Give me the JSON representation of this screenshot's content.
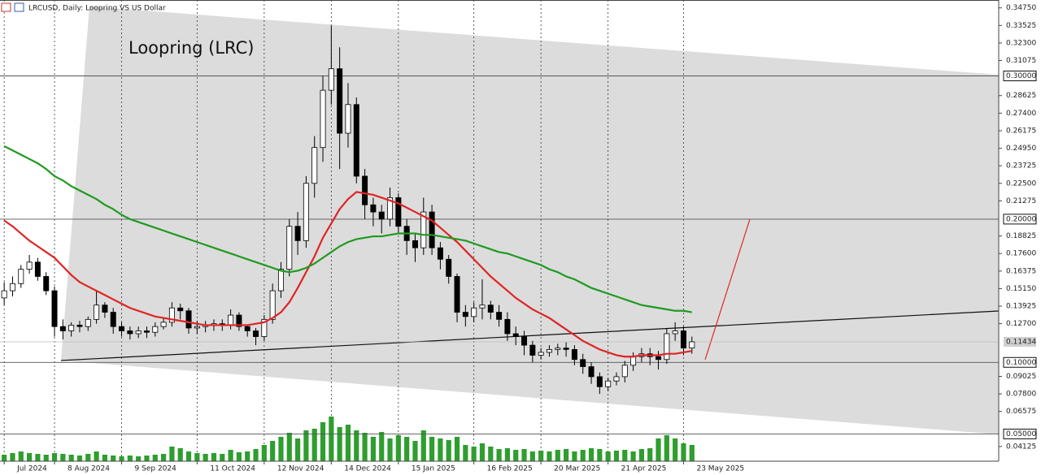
{
  "chart_data": {
    "type": "candlestick",
    "title": "LRCUSD, Daily:  Loopring VS US Dollar",
    "annotation": "Loopring (LRC)",
    "categories": [
      "Jul 2024",
      null,
      null,
      null,
      null,
      null,
      "8 Aug 2024",
      null,
      null,
      null,
      null,
      null,
      null,
      null,
      "9 Sep 2024",
      null,
      null,
      null,
      null,
      null,
      null,
      null,
      null,
      "11 Oct 2024",
      null,
      null,
      null,
      null,
      null,
      null,
      null,
      "12 Nov 2024",
      null,
      null,
      null,
      null,
      null,
      null,
      null,
      "14 Dec 2024",
      null,
      null,
      null,
      null,
      null,
      null,
      null,
      "15 Jan 2025",
      null,
      null,
      null,
      null,
      null,
      null,
      null,
      null,
      "16 Feb 2025",
      null,
      null,
      null,
      null,
      null,
      null,
      null,
      "20 Mar 2025",
      null,
      null,
      null,
      null,
      null,
      null,
      null,
      "21 Apr 2025",
      null,
      null,
      null,
      null,
      null,
      null,
      null,
      null,
      "23 May 2025",
      null
    ],
    "open": [
      0.145,
      0.15,
      0.155,
      0.165,
      0.17,
      0.16,
      0.15,
      0.125,
      0.122,
      0.126,
      0.125,
      0.13,
      0.14,
      0.135,
      0.125,
      0.122,
      0.12,
      0.122,
      0.121,
      0.125,
      0.128,
      0.138,
      0.136,
      0.124,
      0.125,
      0.126,
      0.127,
      0.126,
      0.133,
      0.125,
      0.122,
      0.118,
      0.13,
      0.15,
      0.165,
      0.195,
      0.185,
      0.225,
      0.25,
      0.29,
      0.305,
      0.26,
      0.28,
      0.23,
      0.21,
      0.205,
      0.2,
      0.215,
      0.195,
      0.185,
      0.18,
      0.205,
      0.18,
      0.172,
      0.16,
      0.135,
      0.132,
      0.138,
      0.14,
      0.135,
      0.13,
      0.12,
      0.118,
      0.112,
      0.105,
      0.107,
      0.109,
      0.11,
      0.109,
      0.102,
      0.097,
      0.09,
      0.083,
      0.087,
      0.09,
      0.098,
      0.104,
      0.106,
      0.104,
      0.102,
      0.12,
      0.122,
      0.11
    ],
    "high": [
      0.156,
      0.16,
      0.168,
      0.175,
      0.173,
      0.163,
      0.153,
      0.13,
      0.128,
      0.129,
      0.132,
      0.15,
      0.142,
      0.138,
      0.128,
      0.125,
      0.125,
      0.125,
      0.128,
      0.131,
      0.142,
      0.141,
      0.138,
      0.129,
      0.129,
      0.13,
      0.13,
      0.137,
      0.135,
      0.126,
      0.124,
      0.133,
      0.155,
      0.17,
      0.2,
      0.205,
      0.23,
      0.258,
      0.3,
      0.335,
      0.32,
      0.295,
      0.285,
      0.235,
      0.215,
      0.21,
      0.222,
      0.218,
      0.2,
      0.19,
      0.215,
      0.21,
      0.184,
      0.175,
      0.162,
      0.14,
      0.142,
      0.158,
      0.143,
      0.14,
      0.135,
      0.125,
      0.122,
      0.115,
      0.11,
      0.112,
      0.113,
      0.114,
      0.112,
      0.106,
      0.1,
      0.093,
      0.089,
      0.093,
      0.101,
      0.107,
      0.11,
      0.11,
      0.108,
      0.124,
      0.128,
      0.125,
      0.118
    ],
    "low": [
      0.14,
      0.146,
      0.152,
      0.162,
      0.157,
      0.147,
      0.118,
      0.116,
      0.118,
      0.121,
      0.122,
      0.127,
      0.131,
      0.12,
      0.118,
      0.116,
      0.117,
      0.117,
      0.118,
      0.123,
      0.125,
      0.13,
      0.12,
      0.12,
      0.121,
      0.122,
      0.122,
      0.123,
      0.122,
      0.118,
      0.112,
      0.115,
      0.127,
      0.145,
      0.16,
      0.175,
      0.18,
      0.215,
      0.24,
      0.28,
      0.235,
      0.25,
      0.225,
      0.2,
      0.195,
      0.19,
      0.195,
      0.19,
      0.175,
      0.17,
      0.175,
      0.175,
      0.165,
      0.155,
      0.128,
      0.125,
      0.128,
      0.13,
      0.13,
      0.125,
      0.115,
      0.112,
      0.105,
      0.1,
      0.102,
      0.104,
      0.105,
      0.104,
      0.098,
      0.092,
      0.085,
      0.078,
      0.08,
      0.084,
      0.086,
      0.094,
      0.1,
      0.098,
      0.095,
      0.099,
      0.115,
      0.105,
      0.106
    ],
    "close": [
      0.15,
      0.155,
      0.165,
      0.17,
      0.16,
      0.15,
      0.125,
      0.122,
      0.126,
      0.125,
      0.13,
      0.14,
      0.135,
      0.125,
      0.122,
      0.12,
      0.122,
      0.121,
      0.125,
      0.128,
      0.138,
      0.136,
      0.124,
      0.125,
      0.126,
      0.127,
      0.126,
      0.133,
      0.125,
      0.122,
      0.118,
      0.13,
      0.15,
      0.165,
      0.195,
      0.185,
      0.225,
      0.25,
      0.29,
      0.305,
      0.26,
      0.28,
      0.23,
      0.21,
      0.205,
      0.2,
      0.215,
      0.195,
      0.185,
      0.18,
      0.205,
      0.18,
      0.172,
      0.16,
      0.135,
      0.132,
      0.138,
      0.14,
      0.135,
      0.13,
      0.12,
      0.118,
      0.112,
      0.105,
      0.107,
      0.109,
      0.11,
      0.109,
      0.102,
      0.097,
      0.09,
      0.083,
      0.087,
      0.09,
      0.098,
      0.104,
      0.106,
      0.104,
      0.102,
      0.12,
      0.122,
      0.11,
      0.11434
    ],
    "volume": [
      8,
      10,
      12,
      10,
      9,
      8,
      10,
      9,
      8,
      7,
      9,
      12,
      8,
      7,
      6,
      7,
      6,
      7,
      8,
      9,
      18,
      16,
      12,
      10,
      9,
      10,
      9,
      14,
      11,
      12,
      15,
      20,
      25,
      30,
      35,
      28,
      38,
      40,
      48,
      55,
      42,
      45,
      38,
      35,
      30,
      36,
      28,
      32,
      30,
      25,
      38,
      30,
      28,
      26,
      30,
      20,
      18,
      22,
      18,
      15,
      16,
      14,
      15,
      12,
      13,
      12,
      14,
      15,
      12,
      14,
      16,
      15,
      12,
      13,
      14,
      12,
      15,
      16,
      28,
      32,
      28,
      22,
      20
    ],
    "volume_color": "#2e9e2e",
    "series": [
      {
        "color": "#e02424",
        "values": [
          0.199,
          0.195,
          0.19,
          0.185,
          0.181,
          0.177,
          0.173,
          0.167,
          0.161,
          0.156,
          0.153,
          0.15,
          0.147,
          0.144,
          0.141,
          0.138,
          0.136,
          0.134,
          0.132,
          0.131,
          0.13,
          0.129,
          0.128,
          0.127,
          0.126,
          0.126,
          0.126,
          0.126,
          0.126,
          0.126,
          0.127,
          0.128,
          0.131,
          0.135,
          0.142,
          0.152,
          0.163,
          0.174,
          0.187,
          0.197,
          0.207,
          0.214,
          0.219,
          0.218,
          0.217,
          0.215,
          0.213,
          0.211,
          0.208,
          0.205,
          0.202,
          0.199,
          0.194,
          0.189,
          0.184,
          0.178,
          0.172,
          0.166,
          0.16,
          0.155,
          0.15,
          0.145,
          0.141,
          0.137,
          0.134,
          0.131,
          0.127,
          0.123,
          0.119,
          0.115,
          0.112,
          0.109,
          0.107,
          0.105,
          0.104,
          0.104,
          0.105,
          0.105,
          0.105,
          0.106,
          0.106,
          0.107,
          0.108
        ]
      },
      {
        "color": "#1f9a1f",
        "values": [
          0.251,
          0.248,
          0.245,
          0.242,
          0.239,
          0.235,
          0.23,
          0.227,
          0.223,
          0.22,
          0.217,
          0.214,
          0.21,
          0.207,
          0.203,
          0.2,
          0.198,
          0.196,
          0.194,
          0.192,
          0.19,
          0.188,
          0.186,
          0.184,
          0.182,
          0.18,
          0.178,
          0.176,
          0.174,
          0.172,
          0.17,
          0.168,
          0.166,
          0.164,
          0.163,
          0.164,
          0.166,
          0.169,
          0.173,
          0.177,
          0.181,
          0.184,
          0.186,
          0.187,
          0.188,
          0.188,
          0.189,
          0.19,
          0.19,
          0.19,
          0.189,
          0.189,
          0.188,
          0.187,
          0.186,
          0.185,
          0.183,
          0.181,
          0.179,
          0.177,
          0.176,
          0.174,
          0.172,
          0.17,
          0.168,
          0.165,
          0.163,
          0.16,
          0.158,
          0.155,
          0.152,
          0.15,
          0.148,
          0.146,
          0.144,
          0.142,
          0.14,
          0.139,
          0.138,
          0.137,
          0.136,
          0.136,
          0.135
        ]
      }
    ],
    "levels": [
      {
        "value": 0.3,
        "label": "0.30000"
      },
      {
        "value": 0.2,
        "label": "0.20000"
      },
      {
        "value": 0.1,
        "label": "0.10000"
      },
      {
        "value": 0.05,
        "label": "0.05000"
      }
    ],
    "current_price": 0.11434,
    "ylim": [
      0.031,
      0.353
    ],
    "yticks": [
      {
        "value": 0.3475,
        "label": "0.34750"
      },
      {
        "value": 0.33525,
        "label": "0.33525"
      },
      {
        "value": 0.323,
        "label": "0.32300"
      },
      {
        "value": 0.31075,
        "label": "0.31075"
      },
      {
        "value": 0.28625,
        "label": "0.28625"
      },
      {
        "value": 0.274,
        "label": "0.27400"
      },
      {
        "value": 0.26175,
        "label": "0.26175"
      },
      {
        "value": 0.2495,
        "label": "0.24950"
      },
      {
        "value": 0.23725,
        "label": "0.23725"
      },
      {
        "value": 0.225,
        "label": "0.22500"
      },
      {
        "value": 0.21275,
        "label": "0.21275"
      },
      {
        "value": 0.18825,
        "label": "0.18825"
      },
      {
        "value": 0.176,
        "label": "0.17600"
      },
      {
        "value": 0.16375,
        "label": "0.16375"
      },
      {
        "value": 0.1515,
        "label": "0.15150"
      },
      {
        "value": 0.13925,
        "label": "0.13925"
      },
      {
        "value": 0.127,
        "label": "0.12700"
      },
      {
        "value": 0.09025,
        "label": "0.09025"
      },
      {
        "value": 0.078,
        "label": "0.07800"
      },
      {
        "value": 0.06575,
        "label": "0.06575"
      },
      {
        "value": 0.04125,
        "label": "0.04125"
      }
    ]
  }
}
